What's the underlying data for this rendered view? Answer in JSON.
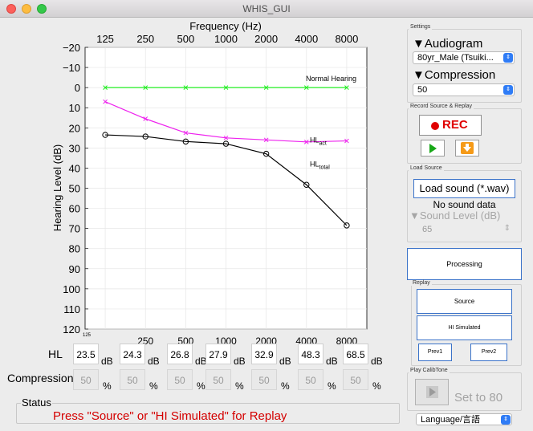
{
  "window": {
    "title": "WHIS_GUI"
  },
  "chart_data": {
    "type": "line",
    "title": "",
    "top_axis_label": "Frequency (Hz)",
    "ylabel": "Hearing Level (dB)",
    "x_ticks": [
      "125",
      "250",
      "500",
      "1000",
      "2000",
      "4000",
      "8000"
    ],
    "bottom_ticks": [
      "125",
      "250",
      "500",
      "1000",
      "2000",
      "4000",
      "8000"
    ],
    "y_ticks": [
      -20,
      -10,
      0,
      10,
      20,
      30,
      40,
      50,
      60,
      70,
      80,
      90,
      100,
      110,
      120
    ],
    "ylim": [
      -20,
      120
    ],
    "y_reversed": true,
    "grid": true,
    "series": [
      {
        "label_main": "Normal Hearing",
        "label_sub": "",
        "color": "#22ee22",
        "marker": "x",
        "values": [
          0,
          0,
          0,
          0,
          0,
          0,
          0
        ]
      },
      {
        "label_main": "HL",
        "label_sub": "act",
        "color": "#ee22ee",
        "marker": "x",
        "values": [
          7,
          15.5,
          22.5,
          25,
          26,
          27,
          26.5
        ]
      },
      {
        "label_main": "HL",
        "label_sub": "total",
        "color": "#000000",
        "marker": "o",
        "values": [
          23.5,
          24.3,
          26.8,
          27.9,
          32.9,
          48.3,
          68.5
        ]
      }
    ]
  },
  "table": {
    "hl_label": "HL",
    "compression_label": "Compression",
    "hl_values": [
      "23.5",
      "24.3",
      "26.8",
      "27.9",
      "32.9",
      "48.3",
      "68.5"
    ],
    "hl_unit": "dB",
    "compression_values": [
      "50",
      "50",
      "50",
      "50",
      "50",
      "50",
      "50"
    ],
    "compression_unit": "%"
  },
  "status": {
    "title": "Status",
    "text": "Press \"Source\" or \"HI Simulated\" for Replay"
  },
  "settings": {
    "title": "Settings",
    "audiogram_label": "▼Audiogram",
    "audiogram_value": "80yr_Male (Tsuiki...",
    "compression_label": "▼Compression",
    "compression_value": "50"
  },
  "record": {
    "title": "Record Source & Replay",
    "rec_label": "REC"
  },
  "load": {
    "title": "Load Source",
    "button_label": "Load sound (*.wav)",
    "no_data_text": "No sound data",
    "sound_level_label": "▼Sound Level (dB)",
    "sound_level_value": "65"
  },
  "processing": {
    "label": "Processing"
  },
  "replay": {
    "title": "Replay",
    "source_label": "Source",
    "hi_label": "HI Simulated",
    "prev1_label": "Prev1",
    "prev2_label": "Prev2"
  },
  "calib": {
    "title": "Play CalibTone",
    "set_label": "Set to 80"
  },
  "language": {
    "value": "Language/言語"
  }
}
